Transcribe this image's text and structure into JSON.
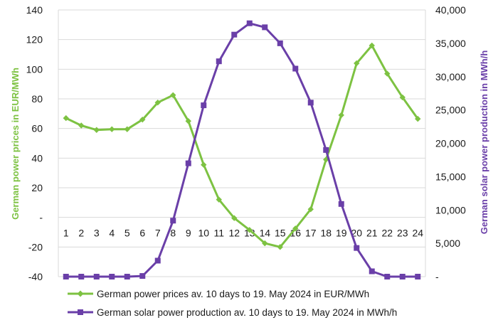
{
  "chart_data": {
    "type": "line",
    "x": [
      1,
      2,
      3,
      4,
      5,
      6,
      7,
      8,
      9,
      10,
      11,
      12,
      13,
      14,
      15,
      16,
      17,
      18,
      19,
      20,
      21,
      22,
      23,
      24
    ],
    "x_tick_labels": [
      "1",
      "2",
      "3",
      "4",
      "5",
      "6",
      "7",
      "8",
      "9",
      "10",
      "11",
      "12",
      "13",
      "14",
      "15",
      "16",
      "17",
      "18",
      "19",
      "20",
      "21",
      "22",
      "23",
      "24"
    ],
    "ylabel": "German power prices in EUR/MWh",
    "ylim": [
      -40,
      140
    ],
    "y_ticks": [
      -40,
      -20,
      0,
      20,
      40,
      60,
      80,
      100,
      120,
      140
    ],
    "y_tick_labels": [
      "-40",
      "-20",
      "-",
      "20",
      "40",
      "60",
      "80",
      "100",
      "120",
      "140"
    ],
    "y2label": "German solar power production in MWh/h",
    "y2lim": [
      0,
      40000
    ],
    "y2_ticks": [
      0,
      5000,
      10000,
      15000,
      20000,
      25000,
      30000,
      35000,
      40000
    ],
    "y2_tick_labels": [
      "-",
      "5,000",
      "10,000",
      "15,000",
      "20,000",
      "25,000",
      "30,000",
      "35,000",
      "40,000"
    ],
    "grid": true,
    "legend_position": "bottom",
    "series": [
      {
        "name": "German power prices av. 10 days to 19. May 2024 in EUR/MWh",
        "axis": "left",
        "color": "#7dc242",
        "marker": "diamond",
        "values": [
          67,
          62,
          59,
          59.5,
          59.5,
          66,
          77.5,
          82.5,
          65,
          35.5,
          12,
          -0.5,
          -8.5,
          -17.5,
          -20,
          -7.5,
          5.5,
          39,
          69,
          104,
          116,
          97,
          81,
          66.5
        ]
      },
      {
        "name": "German solar power production av. 10 days to 19. May 2024 in MWh/h",
        "axis": "right",
        "color": "#6a3fa8",
        "marker": "square",
        "values": [
          0,
          0,
          0,
          0,
          0,
          100,
          2400,
          8400,
          17000,
          25700,
          32300,
          36300,
          38000,
          37400,
          35000,
          31200,
          26100,
          19000,
          10900,
          4300,
          800,
          0,
          0,
          0
        ]
      }
    ]
  }
}
